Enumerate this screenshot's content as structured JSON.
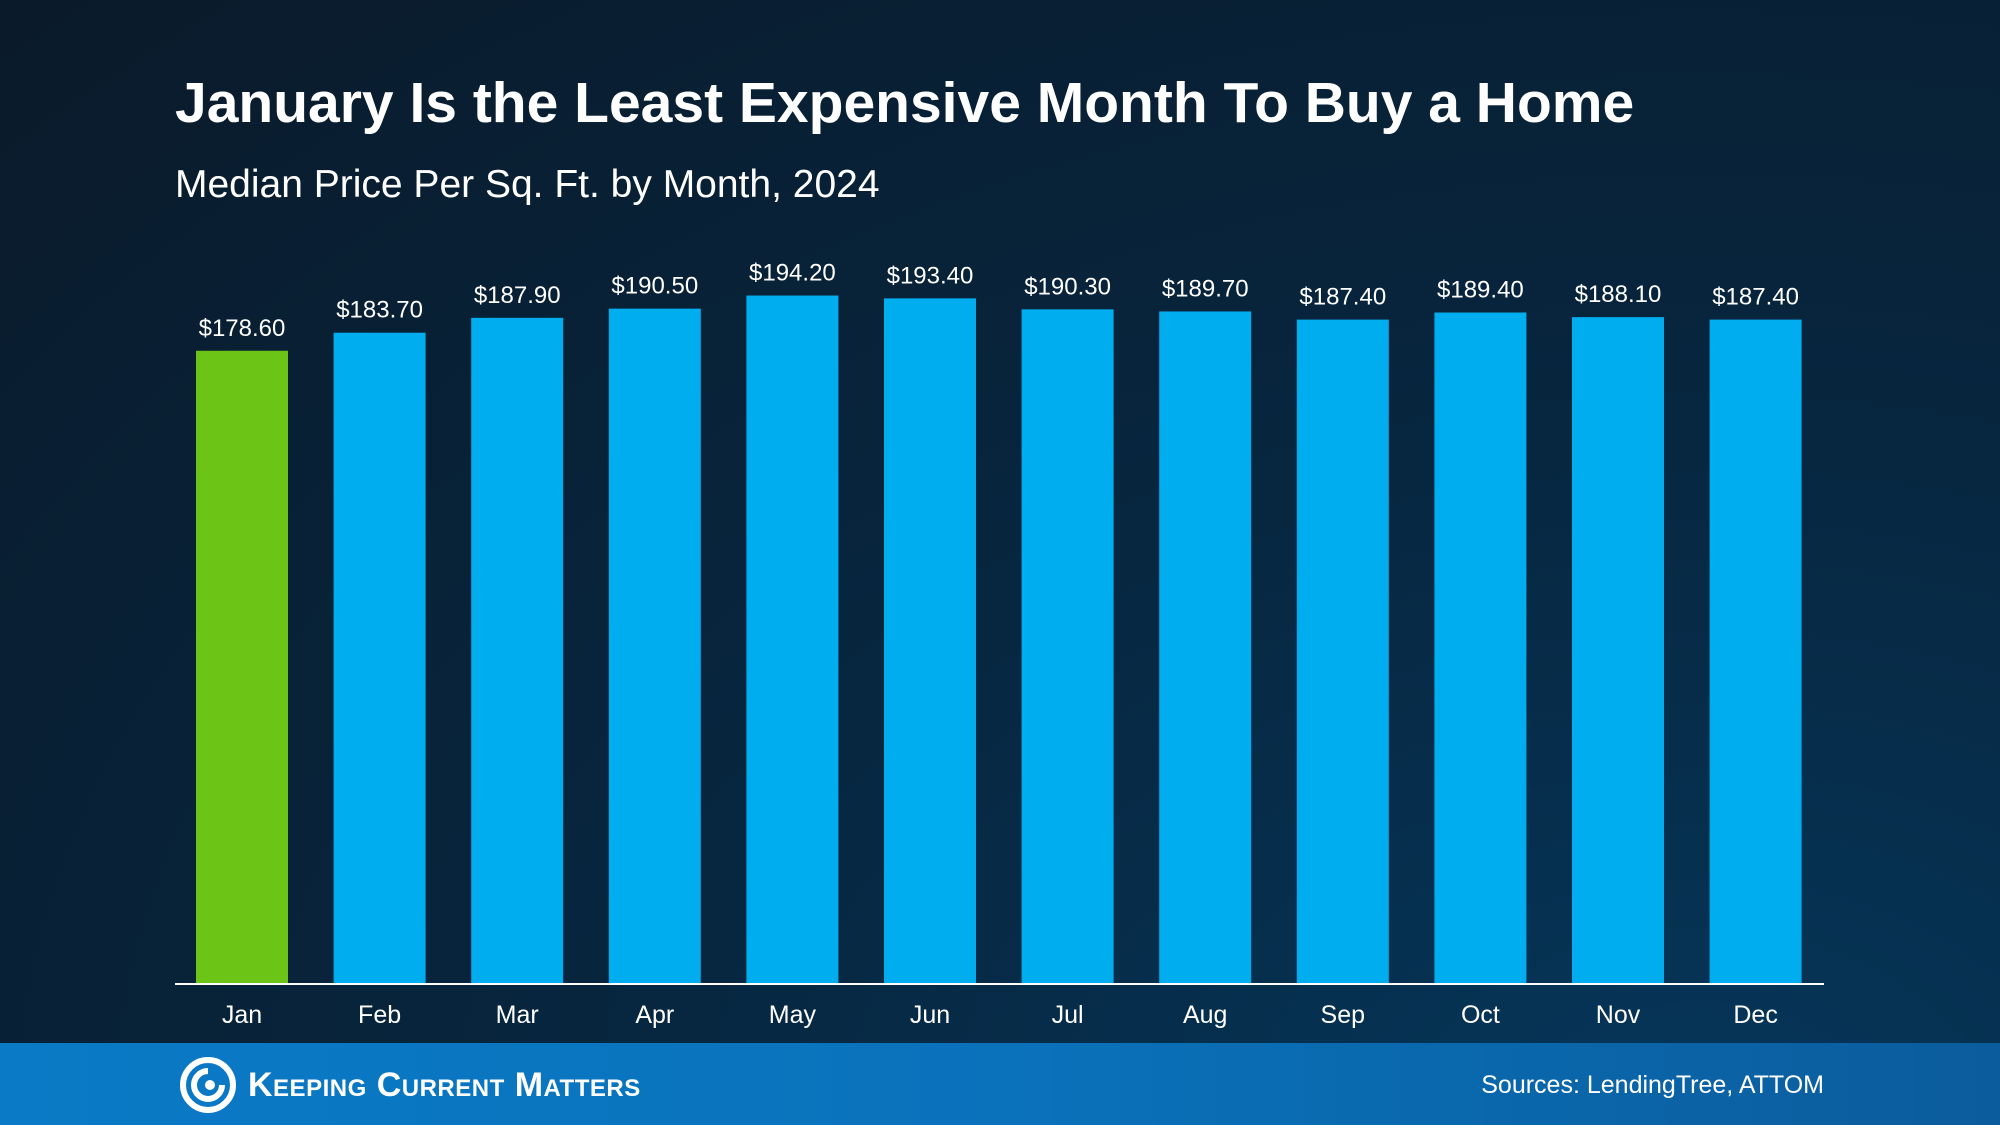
{
  "brand": {
    "name": "Keeping Current Matters"
  },
  "sources": "Sources: LendingTree, ATTOM",
  "colors": {
    "highlight": "#6cc516",
    "bar": "#00adee",
    "background": "#0a1a2a",
    "footer": "#0a7ac6"
  },
  "chart_data": {
    "type": "bar",
    "title": "January Is the Least Expensive Month To Buy a Home",
    "subtitle": "Median Price Per Sq. Ft. by Month, 2024",
    "categories": [
      "Jan",
      "Feb",
      "Mar",
      "Apr",
      "May",
      "Jun",
      "Jul",
      "Aug",
      "Sep",
      "Oct",
      "Nov",
      "Dec"
    ],
    "values": [
      178.6,
      183.7,
      187.9,
      190.5,
      194.2,
      193.4,
      190.3,
      189.7,
      187.4,
      189.4,
      188.1,
      187.4
    ],
    "data_labels": [
      "$178.60",
      "$183.70",
      "$187.90",
      "$190.50",
      "$194.20",
      "$193.40",
      "$190.30",
      "$189.70",
      "$187.40",
      "$189.40",
      "$188.10",
      "$187.40"
    ],
    "highlight_category": "Jan",
    "xlabel": "",
    "ylabel": "",
    "ylim": [
      0,
      200
    ],
    "grid": false,
    "y_axis_visible": false
  }
}
